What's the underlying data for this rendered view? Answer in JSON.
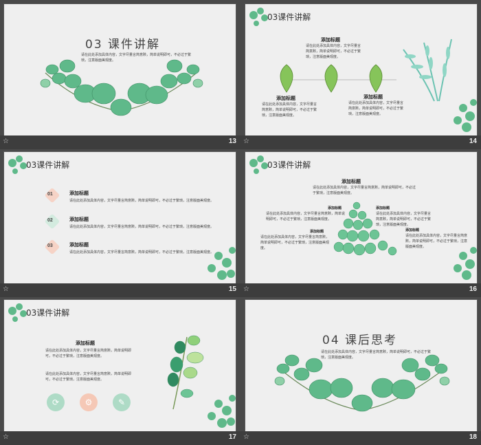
{
  "slides": [
    {
      "number": "13",
      "title": "03 课件讲解",
      "body": "请在此处添加具体内容，文字尽量言简意赅，简单说明即可，不必过于繁琐，注意版面美观度。"
    },
    {
      "number": "14",
      "title": "03课件讲解",
      "headings": [
        "添加标题",
        "添加标题",
        "添加标题"
      ],
      "body": "请在此处添加具体内容，文字尽量言简意赅，简单说明即可，不必过于繁琐，注意版面美观度。"
    },
    {
      "number": "15",
      "title": "03课件讲解",
      "items": [
        {
          "num": "01",
          "heading": "添加标题",
          "text": "请在此处添加具体内容，文字尽量言简意赅，简单说明即可，不必过于繁琐，注意版面美观度。"
        },
        {
          "num": "02",
          "heading": "添加标题",
          "text": "请在此处添加具体内容，文字尽量言简意赅，简单说明即可，不必过于繁琐，注意版面美观度。"
        },
        {
          "num": "03",
          "heading": "添加标题",
          "text": "请在此处添加具体内容，文字尽量言简意赅，简单说明即可，不必过于繁琐，注意版面美观度。"
        }
      ]
    },
    {
      "number": "16",
      "title": "03课件讲解",
      "heading": "添加标题",
      "body": "请在此处添加具体内容，文字尽量言简意赅，简单说明即可，不必过于繁琐，注意版面美观度。"
    },
    {
      "number": "17",
      "title": "03课件讲解",
      "heading": "添加标题",
      "body": "请在此处添加具体内容，文字尽量言简意赅，简单说明即可，不必过于繁琐，注意版面美观度。"
    },
    {
      "number": "18",
      "title": "04 课后思考",
      "body": "请在此处添加具体内容，文字尽量言简意赅，简单说明即可，不必过于繁琐，注意版面美观度。"
    }
  ],
  "icons": [
    "refresh-icon",
    "gear-icon",
    "edit-icon"
  ],
  "colors": {
    "leaf": "#5fb98a",
    "leaf_light": "#9fd8b3",
    "badge_pink": "#f6d3c6",
    "badge_green": "#d3ebdf",
    "icon_green": "#aedbc6",
    "icon_pink": "#f5c8b6"
  }
}
